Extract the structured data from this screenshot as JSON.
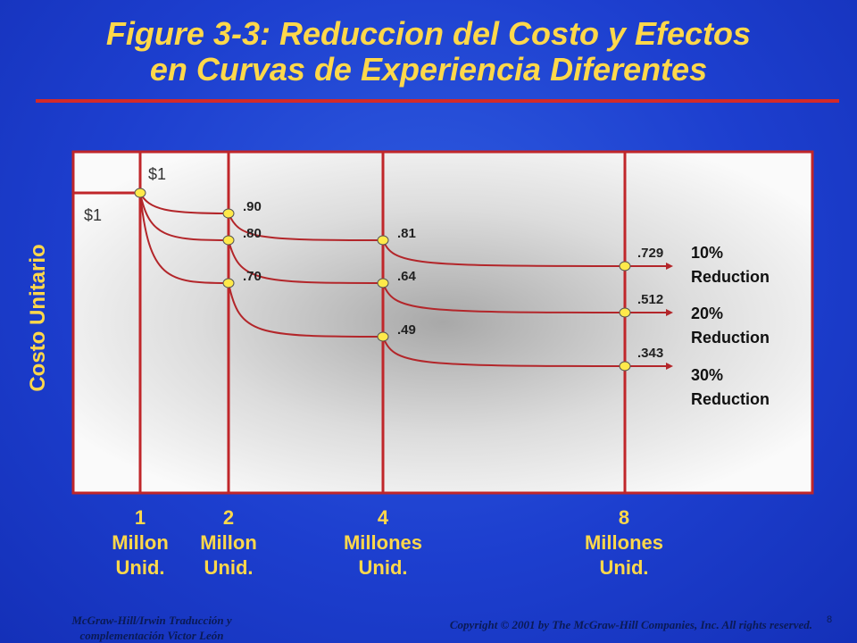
{
  "title_line1": "Figure 3-3: Reduccion  del Costo y  Efectos",
  "title_line2": "en  Curvas de   Experiencia Diferentes",
  "colors": {
    "background": "#1d3fcf",
    "title": "#ffd84a",
    "rule": "#d32a2a",
    "curve": "#b3262a",
    "node": "#ffe94a",
    "plot_bg": "#f4f4f4"
  },
  "chart_data": {
    "type": "line",
    "ylabel": "Costo Unitario",
    "x_ticks": [
      {
        "value": 1,
        "num": "1",
        "line1": "Millon",
        "line2": "Unid."
      },
      {
        "value": 2,
        "num": "2",
        "line1": "Millon",
        "line2": "Unid."
      },
      {
        "value": 4,
        "num": "4",
        "line1": "Millones",
        "line2": "Unid."
      },
      {
        "value": 8,
        "num": "8",
        "line1": "Millones",
        "line2": "Unid."
      }
    ],
    "start_labels": [
      "$1",
      "$1"
    ],
    "series": [
      {
        "name": "10% Reduction",
        "pct": "10%",
        "word": "Reduction",
        "x": [
          1,
          2,
          4,
          8
        ],
        "y": [
          1,
          0.9,
          0.81,
          0.729
        ],
        "labels": [
          "$1",
          ".90",
          ".81",
          ".729"
        ]
      },
      {
        "name": "20% Reduction",
        "pct": "20%",
        "word": "Reduction",
        "x": [
          1,
          2,
          4,
          8
        ],
        "y": [
          1,
          0.8,
          0.64,
          0.512
        ],
        "labels": [
          "$1",
          ".80",
          ".64",
          ".512"
        ]
      },
      {
        "name": "30% Reduction",
        "pct": "30%",
        "word": "Reduction",
        "x": [
          1,
          2,
          4,
          8
        ],
        "y": [
          1,
          0.7,
          0.49,
          0.343
        ],
        "labels": [
          "$1",
          ".70",
          ".49",
          ".343"
        ]
      }
    ]
  },
  "footer": {
    "left_line1": "McGraw-Hill/Irwin  Traducción  y",
    "left_line2": "complementación  Victor  León",
    "right": "Copyright © 2001 by The McGraw-Hill Companies, Inc.  All rights reserved.",
    "page": "8"
  }
}
